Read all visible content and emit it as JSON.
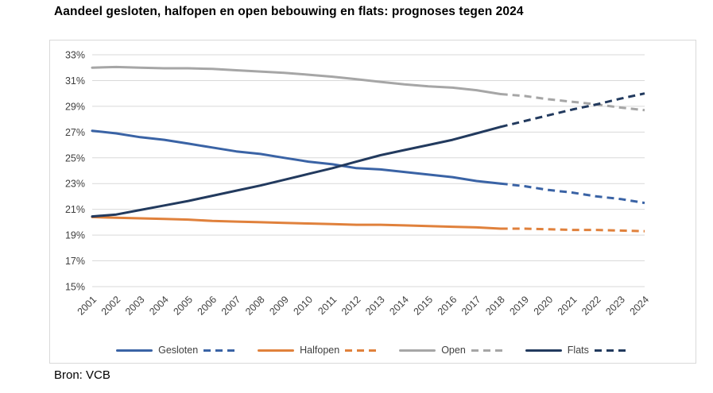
{
  "source_note": "Bron: VCB",
  "axis_style": {
    "grid_color": "#d9d9d9",
    "text_color": "#404040"
  },
  "chart_data": {
    "type": "line",
    "title": "Aandeel gesloten, halfopen en open bebouwing en flats: prognoses tegen 2024",
    "xlabel": "",
    "ylabel": "",
    "ylim": [
      15,
      33
    ],
    "ytick_step": 2,
    "ytick_suffix": "%",
    "grid": true,
    "legend_position": "bottom",
    "dashed_from_category": "2018",
    "categories": [
      "2001",
      "2002",
      "2003",
      "2004",
      "2005",
      "2006",
      "2007",
      "2008",
      "2009",
      "2010",
      "2011",
      "2012",
      "2013",
      "2014",
      "2015",
      "2016",
      "2017",
      "2018",
      "2019",
      "2020",
      "2021",
      "2022",
      "2023",
      "2024"
    ],
    "series": [
      {
        "name": "Gesloten",
        "color": "#3a63a5",
        "values": [
          27.1,
          26.9,
          26.6,
          26.4,
          26.1,
          25.8,
          25.5,
          25.3,
          25.0,
          24.7,
          24.5,
          24.2,
          24.1,
          23.9,
          23.7,
          23.5,
          23.2,
          23.0,
          22.8,
          22.5,
          22.3,
          22.0,
          21.8,
          21.5
        ]
      },
      {
        "name": "Halfopen",
        "color": "#e0813c",
        "values": [
          20.4,
          20.35,
          20.3,
          20.25,
          20.2,
          20.1,
          20.05,
          20.0,
          19.95,
          19.9,
          19.85,
          19.8,
          19.8,
          19.75,
          19.7,
          19.65,
          19.6,
          19.5,
          19.5,
          19.45,
          19.4,
          19.4,
          19.35,
          19.3
        ]
      },
      {
        "name": "Open",
        "color": "#a6a6a6",
        "values": [
          32.0,
          32.05,
          32.0,
          31.95,
          31.95,
          31.9,
          31.8,
          31.7,
          31.6,
          31.45,
          31.3,
          31.1,
          30.9,
          30.7,
          30.55,
          30.45,
          30.25,
          29.95,
          29.8,
          29.55,
          29.35,
          29.15,
          28.9,
          28.7
        ]
      },
      {
        "name": "Flats",
        "color": "#223a5e",
        "values": [
          20.45,
          20.6,
          20.95,
          21.3,
          21.65,
          22.05,
          22.45,
          22.85,
          23.3,
          23.75,
          24.2,
          24.7,
          25.2,
          25.6,
          26.0,
          26.4,
          26.9,
          27.4,
          27.85,
          28.3,
          28.75,
          29.15,
          29.6,
          30.0
        ]
      }
    ]
  }
}
